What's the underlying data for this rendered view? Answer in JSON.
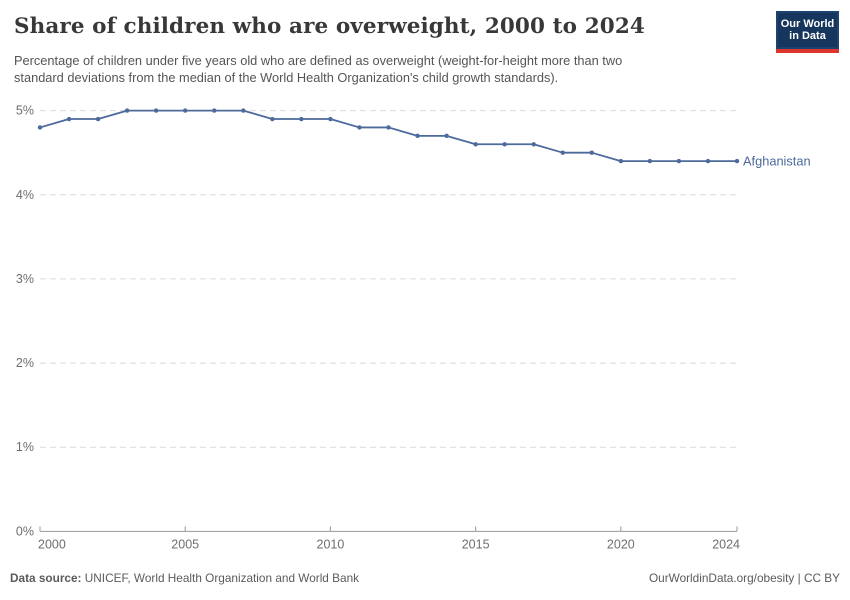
{
  "header": {
    "title": "Share of children who are overweight, 2000 to 2024",
    "subtitle_line1": "Percentage of children under five years old who are defined as overweight (weight-for-height more than two",
    "subtitle_line2": "standard deviations from the median of the World Health Organization's child growth standards).",
    "logo": {
      "line1": "Our World",
      "line2": "in Data"
    }
  },
  "chart_data": {
    "type": "line",
    "title": "Share of children who are overweight, 2000 to 2024",
    "unit": "%",
    "x": [
      2000,
      2001,
      2002,
      2003,
      2004,
      2005,
      2006,
      2007,
      2008,
      2009,
      2010,
      2011,
      2012,
      2013,
      2014,
      2015,
      2016,
      2017,
      2018,
      2019,
      2020,
      2021,
      2022,
      2023,
      2024
    ],
    "series": [
      {
        "name": "Afghanistan",
        "values": [
          4.8,
          4.9,
          4.9,
          5.0,
          5.0,
          5.0,
          5.0,
          5.0,
          4.9,
          4.9,
          4.9,
          4.8,
          4.8,
          4.7,
          4.7,
          4.6,
          4.6,
          4.6,
          4.5,
          4.5,
          4.4,
          4.4,
          4.4,
          4.4,
          4.4
        ]
      }
    ],
    "entity_label": "Afghanistan",
    "ylim": [
      0,
      5
    ],
    "y_ticks": [
      {
        "value": 0,
        "label": "0%"
      },
      {
        "value": 1,
        "label": "1%"
      },
      {
        "value": 2,
        "label": "2%"
      },
      {
        "value": 3,
        "label": "3%"
      },
      {
        "value": 4,
        "label": "4%"
      },
      {
        "value": 5,
        "label": "5%"
      }
    ],
    "x_ticks": [
      2000,
      2005,
      2010,
      2015,
      2020,
      2024
    ],
    "grid": "horizontal-dashed",
    "legend_position": "end-of-line",
    "colors": {
      "line": "#4C6A9C",
      "gridline": "#dadada",
      "axis": "#999999",
      "tick_label": "#6e6e6e"
    }
  },
  "footer": {
    "data_source_label": "Data source:",
    "data_source_value": "UNICEF, World Health Organization and World Bank",
    "attribution": "OurWorldinData.org/obesity | CC BY"
  }
}
